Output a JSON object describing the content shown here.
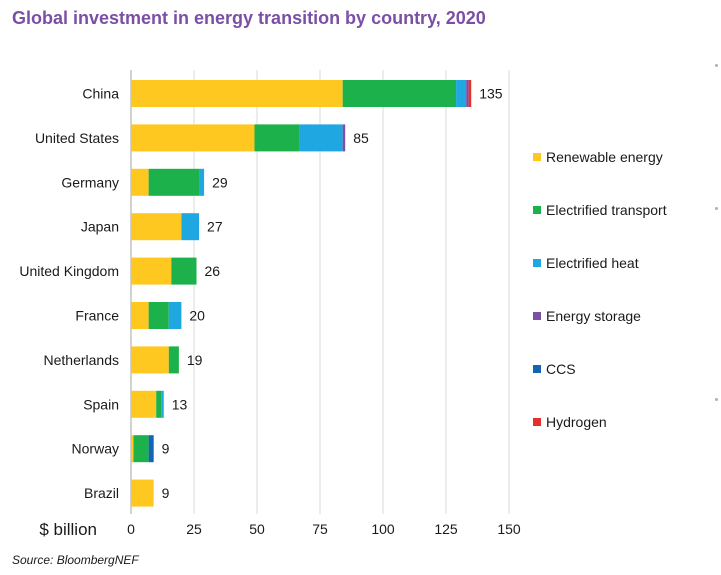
{
  "title": "Global investment in energy transition by country, 2020",
  "source": "Source: BloombergNEF",
  "chart_data": {
    "type": "bar",
    "orientation": "horizontal",
    "stacked": true,
    "title": "Global investment in energy transition by country, 2020",
    "xlabel": "$ billion",
    "ylabel": "",
    "xlim": [
      0,
      150
    ],
    "xticks": [
      "0",
      "25",
      "50",
      "75",
      "100",
      "125",
      "150"
    ],
    "grid": "vertical",
    "legend_position": "right",
    "categories": [
      "China",
      "United States",
      "Germany",
      "Japan",
      "United Kingdom",
      "France",
      "Netherlands",
      "Spain",
      "Norway",
      "Brazil"
    ],
    "totals": [
      "135",
      "85",
      "29",
      "27",
      "26",
      "20",
      "19",
      "13",
      "9",
      "9"
    ],
    "series": [
      {
        "name": "Renewable energy",
        "color": "#ffc820",
        "values": [
          84,
          49,
          7,
          20,
          16,
          7,
          15,
          10,
          1,
          9
        ]
      },
      {
        "name": "Electrified transport",
        "color": "#1db14b",
        "values": [
          45,
          18,
          20,
          0,
          10,
          8,
          4,
          2,
          6,
          0
        ]
      },
      {
        "name": "Electrified heat",
        "color": "#1ea7e1",
        "values": [
          4,
          17,
          2,
          7,
          0,
          5,
          0,
          1,
          0,
          0
        ]
      },
      {
        "name": "Energy storage",
        "color": "#7b4fa6",
        "values": [
          1,
          1,
          0,
          0,
          0,
          0,
          0,
          0,
          0,
          0
        ]
      },
      {
        "name": "CCS",
        "color": "#1365b4",
        "values": [
          0,
          0,
          0,
          0,
          0,
          0,
          0,
          0,
          2,
          0
        ]
      },
      {
        "name": "Hydrogen",
        "color": "#e53228",
        "values": [
          1,
          0,
          0,
          0,
          0,
          0,
          0,
          0,
          0,
          0
        ]
      }
    ]
  }
}
